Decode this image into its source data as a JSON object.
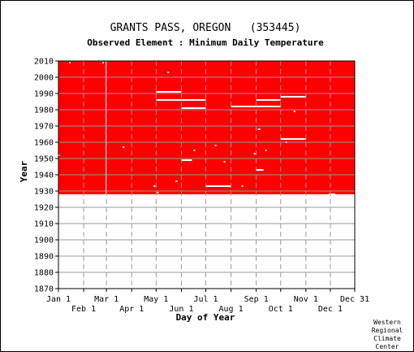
{
  "chart_data": {
    "type": "heatmap",
    "title": "GRANTS PASS, OREGON   (353445)",
    "subtitle": "Observed Element : Minimum Daily Temperature",
    "xlabel": "Day of Year",
    "ylabel": "Year",
    "xlim": [
      1,
      365
    ],
    "ylim": [
      1870,
      2010
    ],
    "x_ticks_upper": [
      {
        "label": "Jan 1",
        "day": 1
      },
      {
        "label": "Mar 1",
        "day": 60
      },
      {
        "label": "May 1",
        "day": 121
      },
      {
        "label": "Jul 1",
        "day": 182
      },
      {
        "label": "Sep 1",
        "day": 244
      },
      {
        "label": "Nov 1",
        "day": 305
      },
      {
        "label": "Dec 31",
        "day": 365
      }
    ],
    "x_ticks_lower": [
      {
        "label": "Feb 1",
        "day": 32
      },
      {
        "label": "Apr 1",
        "day": 91
      },
      {
        "label": "Jun 1",
        "day": 152
      },
      {
        "label": "Aug 1",
        "day": 213
      },
      {
        "label": "Oct 1",
        "day": 274
      },
      {
        "label": "Dec 1",
        "day": 335
      }
    ],
    "y_ticks": [
      2010,
      2000,
      1990,
      1980,
      1970,
      1960,
      1950,
      1940,
      1930,
      1920,
      1910,
      1900,
      1890,
      1880,
      1870
    ],
    "grid": true,
    "colors": {
      "observed": "#ff0000",
      "missing": "#ffffff",
      "grid": "#999999"
    },
    "observed_period": {
      "start_year": 1928,
      "end_year": 2010
    },
    "missing_segments": [
      {
        "year": 1991,
        "start_day": 121,
        "end_day": 152
      },
      {
        "year": 1986,
        "start_day": 121,
        "end_day": 152
      },
      {
        "year": 1986,
        "start_day": 152,
        "end_day": 182
      },
      {
        "year": 1981,
        "start_day": 152,
        "end_day": 182
      },
      {
        "year": 1982,
        "start_day": 213,
        "end_day": 244
      },
      {
        "year": 1982,
        "start_day": 244,
        "end_day": 274
      },
      {
        "year": 1986,
        "start_day": 244,
        "end_day": 274
      },
      {
        "year": 1988,
        "start_day": 274,
        "end_day": 305
      },
      {
        "year": 1962,
        "start_day": 274,
        "end_day": 305
      },
      {
        "year": 1949,
        "start_day": 152,
        "end_day": 165
      },
      {
        "year": 1943,
        "start_day": 244,
        "end_day": 253
      },
      {
        "year": 1933,
        "start_day": 182,
        "end_day": 213
      },
      {
        "year": 1968,
        "start_day": 246,
        "end_day": 249
      },
      {
        "year": 2003,
        "start_day": 135,
        "end_day": 137
      },
      {
        "year": 1957,
        "start_day": 80,
        "end_day": 82
      },
      {
        "year": 1955,
        "start_day": 167,
        "end_day": 169
      },
      {
        "year": 1955,
        "start_day": 255,
        "end_day": 257
      },
      {
        "year": 1958,
        "start_day": 193,
        "end_day": 195
      },
      {
        "year": 1948,
        "start_day": 204,
        "end_day": 206
      },
      {
        "year": 1953,
        "start_day": 241,
        "end_day": 243
      },
      {
        "year": 1936,
        "start_day": 145,
        "end_day": 147
      },
      {
        "year": 1933,
        "start_day": 118,
        "end_day": 120
      },
      {
        "year": 1929,
        "start_day": 122,
        "end_day": 124
      },
      {
        "year": 1933,
        "start_day": 226,
        "end_day": 228
      },
      {
        "year": 1928,
        "start_day": 333,
        "end_day": 341
      },
      {
        "year": 2009,
        "start_day": 14,
        "end_day": 16
      },
      {
        "year": 2009,
        "start_day": 55,
        "end_day": 57
      },
      {
        "year": 1960,
        "start_day": 280,
        "end_day": 282
      },
      {
        "year": 1952,
        "start_day": 1,
        "end_day": 2
      },
      {
        "year": 1979,
        "start_day": 290,
        "end_day": 292
      }
    ],
    "missing_days_all_years": [
      59
    ]
  },
  "credit": {
    "lines": [
      "Western",
      "Regional",
      "Climate",
      "Center"
    ]
  }
}
